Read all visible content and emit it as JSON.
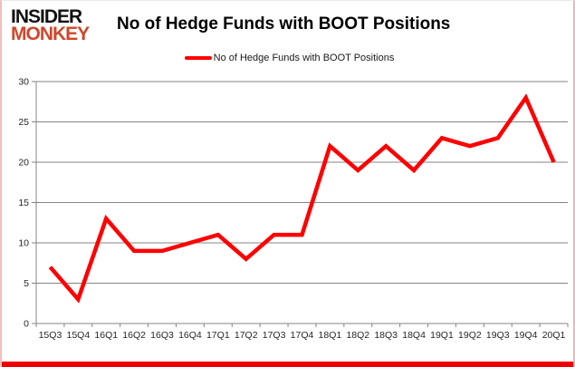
{
  "brand": {
    "line1": "INSIDER",
    "line2": "MONKEY",
    "monkey_color": "#d0472b"
  },
  "header": {
    "title": "No of Hedge Funds with BOOT Positions"
  },
  "legend": {
    "label": "No of Hedge Funds with BOOT Positions",
    "color": "#ff0000"
  },
  "chart_data": {
    "type": "line",
    "title": "No of Hedge Funds with BOOT Positions",
    "categories": [
      "15Q3",
      "15Q4",
      "16Q1",
      "16Q2",
      "16Q3",
      "16Q4",
      "17Q1",
      "17Q2",
      "17Q3",
      "17Q4",
      "18Q1",
      "18Q2",
      "18Q3",
      "18Q4",
      "19Q1",
      "19Q2",
      "19Q3",
      "19Q4",
      "20Q1"
    ],
    "series": [
      {
        "name": "No of Hedge Funds with BOOT Positions",
        "values": [
          7,
          3,
          13,
          9,
          9,
          10,
          11,
          8,
          11,
          11,
          22,
          19,
          22,
          19,
          23,
          22,
          23,
          28,
          20
        ],
        "color": "#ff0000"
      }
    ],
    "xlabel": "",
    "ylabel": "",
    "ylim": [
      0,
      30
    ],
    "ytick_interval": 5,
    "yticks": [
      0,
      5,
      10,
      15,
      20,
      25,
      30
    ],
    "grid": true,
    "legend_position": "top-center"
  },
  "colors": {
    "line": "#ff0000",
    "gridline": "#848484",
    "axis": "#848484",
    "tick_label": "#262626",
    "bottom_bar": "#ee0000",
    "side_border": "#f0b4b4"
  }
}
